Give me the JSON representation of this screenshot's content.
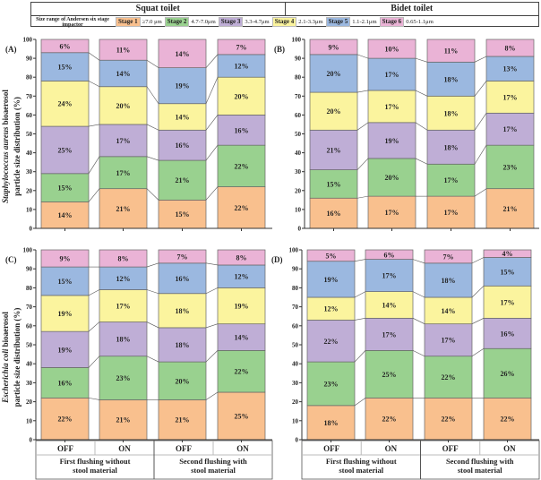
{
  "header": {
    "left_title": "Squat toilet",
    "right_title": "Bidet toilet",
    "legend_title": "Size range of Andersen six stage impactor"
  },
  "stages": [
    {
      "label": "Stage 1",
      "range": "≥7.0 μm",
      "color": "#f9c08e"
    },
    {
      "label": "Stage 2",
      "range": "4.7-7.0μm",
      "color": "#99d18f"
    },
    {
      "label": "Stage 3",
      "range": "3.3-4.7μm",
      "color": "#bfaed6"
    },
    {
      "label": "Stage 4",
      "range": "2.1-3.3μm",
      "color": "#fbf49e"
    },
    {
      "label": "Stage 5",
      "range": "1.1-2.1μm",
      "color": "#9bb8e0"
    },
    {
      "label": "Stage 6",
      "range": "0.65-1.1μm",
      "color": "#eab3d6"
    }
  ],
  "chart_data": [
    {
      "type": "bar",
      "stacked": true,
      "panel": "(A)",
      "ylabel_italic": "Staphylococcus aureus",
      "ylabel_rest": " bioaerosol",
      "ylabel_line2": "particle size distribution (%)",
      "ylim": [
        0,
        100
      ],
      "yticks": [
        0,
        10,
        20,
        30,
        40,
        50,
        60,
        70,
        80,
        90,
        100
      ],
      "values": [
        [
          14,
          15,
          25,
          24,
          15,
          6
        ],
        [
          21,
          17,
          17,
          20,
          14,
          11
        ],
        [
          15,
          21,
          16,
          14,
          19,
          14
        ],
        [
          22,
          22,
          16,
          20,
          12,
          7
        ]
      ]
    },
    {
      "type": "bar",
      "stacked": true,
      "panel": "(B)",
      "ylim": [
        0,
        100
      ],
      "yticks": [
        0,
        10,
        20,
        30,
        40,
        50,
        60,
        70,
        80,
        90,
        100
      ],
      "values": [
        [
          16,
          15,
          21,
          20,
          20,
          9
        ],
        [
          17,
          20,
          19,
          17,
          17,
          10
        ],
        [
          17,
          17,
          18,
          18,
          18,
          11
        ],
        [
          21,
          23,
          17,
          17,
          13,
          8
        ]
      ]
    },
    {
      "type": "bar",
      "stacked": true,
      "panel": "(C)",
      "ylabel_italic": "Escherichia coli",
      "ylabel_rest": " bioaerosol",
      "ylabel_line2": "particle size distribution (%)",
      "ylim": [
        0,
        100
      ],
      "yticks": [
        0,
        10,
        20,
        30,
        40,
        50,
        60,
        70,
        80,
        90,
        100
      ],
      "values": [
        [
          22,
          16,
          19,
          19,
          15,
          9
        ],
        [
          21,
          23,
          18,
          17,
          12,
          8
        ],
        [
          21,
          20,
          18,
          18,
          16,
          7
        ],
        [
          25,
          22,
          14,
          19,
          12,
          8
        ]
      ],
      "categories": [
        "OFF",
        "ON",
        "OFF",
        "ON"
      ],
      "groups": [
        "First flushing without stool material",
        "Second flushing with stool material"
      ]
    },
    {
      "type": "bar",
      "stacked": true,
      "panel": "(D)",
      "ylim": [
        0,
        100
      ],
      "yticks": [
        0,
        10,
        20,
        30,
        40,
        50,
        60,
        70,
        80,
        90,
        100
      ],
      "values": [
        [
          18,
          23,
          22,
          12,
          19,
          5
        ],
        [
          22,
          25,
          17,
          14,
          17,
          6
        ],
        [
          22,
          22,
          17,
          14,
          18,
          7
        ],
        [
          22,
          26,
          16,
          17,
          15,
          4
        ]
      ],
      "categories": [
        "OFF",
        "ON",
        "OFF",
        "ON"
      ],
      "groups": [
        "First flushing without stool material",
        "Second flushing with stool material"
      ]
    }
  ]
}
